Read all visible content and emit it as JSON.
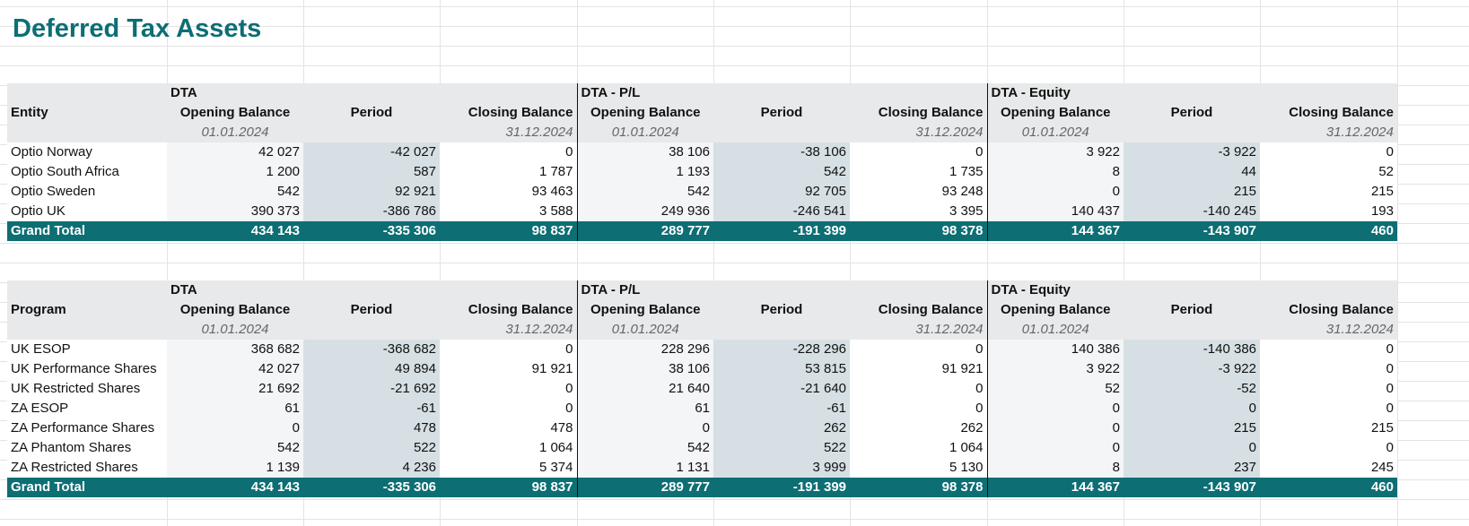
{
  "title": "Deferred Tax Assets",
  "groups": [
    "DTA",
    "DTA - P/L",
    "DTA - Equity"
  ],
  "columns": {
    "opening": "Opening Balance",
    "period": "Period",
    "closing": "Closing Balance"
  },
  "dates": {
    "opening": "01.01.2024",
    "closing": "31.12.2024"
  },
  "table1": {
    "row_header": "Entity",
    "rows": [
      {
        "label": "Optio Norway",
        "values": [
          "42 027",
          "-42 027",
          "0",
          "38 106",
          "-38 106",
          "0",
          "3 922",
          "-3 922",
          "0"
        ]
      },
      {
        "label": "Optio South Africa",
        "values": [
          "1 200",
          "587",
          "1 787",
          "1 193",
          "542",
          "1 735",
          "8",
          "44",
          "52"
        ]
      },
      {
        "label": "Optio Sweden",
        "values": [
          "542",
          "92 921",
          "93 463",
          "542",
          "92 705",
          "93 248",
          "0",
          "215",
          "215"
        ]
      },
      {
        "label": "Optio UK",
        "values": [
          "390 373",
          "-386 786",
          "3 588",
          "249 936",
          "-246 541",
          "3 395",
          "140 437",
          "-140 245",
          "193"
        ]
      }
    ],
    "total": {
      "label": "Grand Total",
      "values": [
        "434 143",
        "-335 306",
        "98 837",
        "289 777",
        "-191 399",
        "98 378",
        "144 367",
        "-143 907",
        "460"
      ]
    }
  },
  "table2": {
    "row_header": "Program",
    "rows": [
      {
        "label": "UK ESOP",
        "values": [
          "368 682",
          "-368 682",
          "0",
          "228 296",
          "-228 296",
          "0",
          "140 386",
          "-140 386",
          "0"
        ]
      },
      {
        "label": "UK Performance Shares",
        "values": [
          "42 027",
          "49 894",
          "91 921",
          "38 106",
          "53 815",
          "91 921",
          "3 922",
          "-3 922",
          "0"
        ]
      },
      {
        "label": "UK Restricted Shares",
        "values": [
          "21 692",
          "-21 692",
          "0",
          "21 640",
          "-21 640",
          "0",
          "52",
          "-52",
          "0"
        ]
      },
      {
        "label": "ZA ESOP",
        "values": [
          "61",
          "-61",
          "0",
          "61",
          "-61",
          "0",
          "0",
          "0",
          "0"
        ]
      },
      {
        "label": "ZA Performance Shares",
        "values": [
          "0",
          "478",
          "478",
          "0",
          "262",
          "262",
          "0",
          "215",
          "215"
        ]
      },
      {
        "label": "ZA Phantom Shares",
        "values": [
          "542",
          "522",
          "1 064",
          "542",
          "522",
          "1 064",
          "0",
          "0",
          "0"
        ]
      },
      {
        "label": "ZA Restricted Shares",
        "values": [
          "1 139",
          "4 236",
          "5 374",
          "1 131",
          "3 999",
          "5 130",
          "8",
          "237",
          "245"
        ]
      }
    ],
    "total": {
      "label": "Grand Total",
      "values": [
        "434 143",
        "-335 306",
        "98 837",
        "289 777",
        "-191 399",
        "98 378",
        "144 367",
        "-143 907",
        "460"
      ]
    }
  },
  "colors": {
    "title": "#0d6e74",
    "total_band": "#0d6e74",
    "header_band": "#e8e9eb",
    "period_fill": "#d6e0e4"
  }
}
